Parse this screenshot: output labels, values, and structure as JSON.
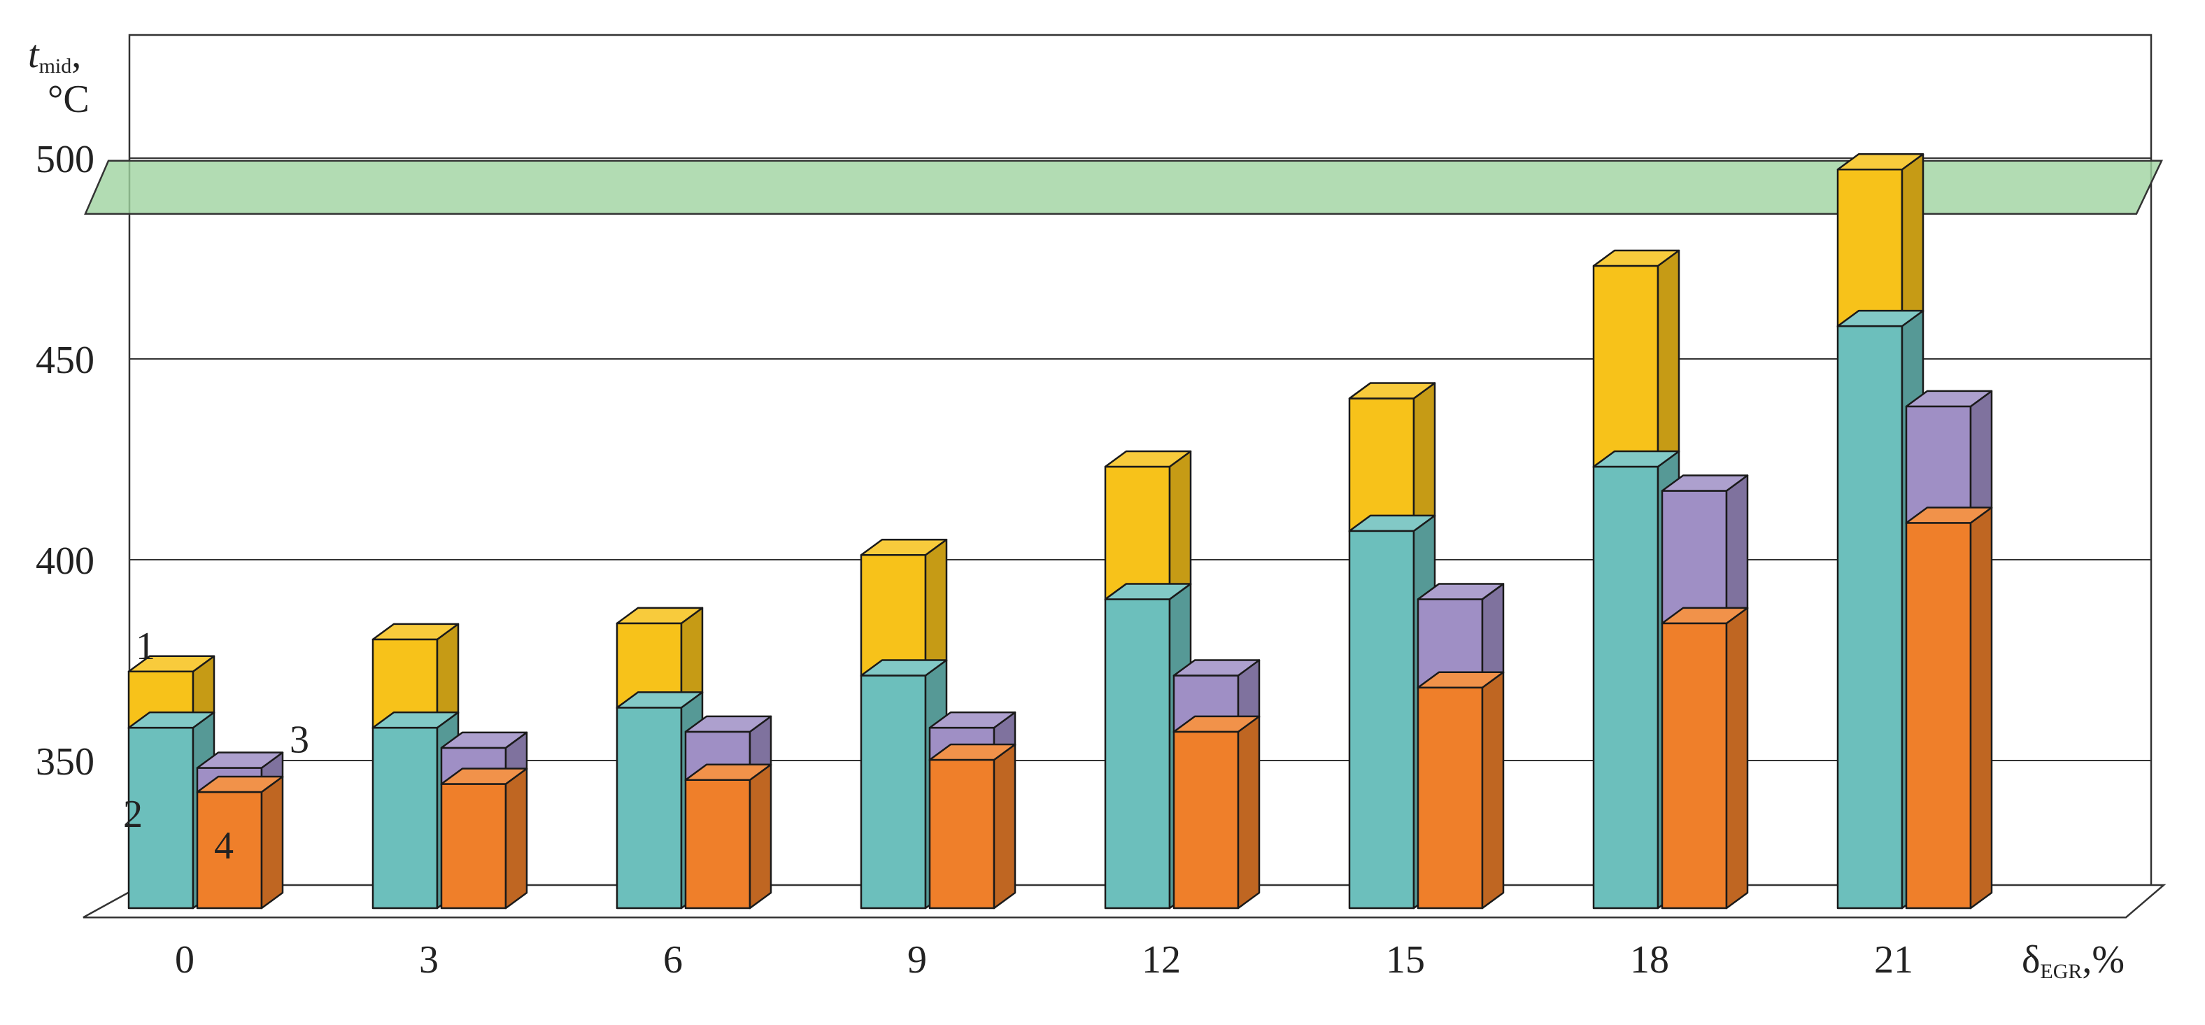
{
  "chart_data": {
    "type": "bar",
    "subtype": "3d-stacked-grouped",
    "ylabel": {
      "main": "t",
      "sub": "mid",
      "suffix": ",",
      "unit": "°C"
    },
    "xlabel": {
      "main": "δ",
      "sub": "EGR",
      "suffix": ",%"
    },
    "categories": [
      "0",
      "3",
      "6",
      "9",
      "12",
      "15",
      "18",
      "21"
    ],
    "y_ticks": [
      "350",
      "400",
      "450",
      "500"
    ],
    "ylim": [
      320,
      530
    ],
    "limit_band": {
      "value": 495,
      "color": "#9fd3a0"
    },
    "grid": true,
    "series": [
      {
        "label": "1",
        "color": "#f7c21a",
        "values": [
          376,
          384,
          388,
          405,
          427,
          444,
          477,
          501
        ]
      },
      {
        "label": "2",
        "color": "#6cbfbc",
        "values": [
          362,
          362,
          367,
          375,
          394,
          411,
          427,
          462
        ]
      },
      {
        "label": "3",
        "color": "#9f8fc5",
        "values": [
          352,
          357,
          361,
          362,
          375,
          394,
          421,
          442
        ]
      },
      {
        "label": "4",
        "color": "#ef7f2a",
        "values": [
          346,
          348,
          349,
          354,
          361,
          372,
          388,
          413
        ]
      }
    ]
  }
}
